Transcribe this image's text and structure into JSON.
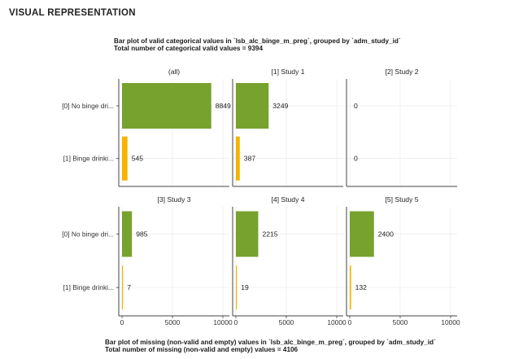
{
  "section": {
    "title": "VISUAL REPRESENTATION"
  },
  "header": {
    "line1": "Bar plot of valid categorical values in `lsb_alc_binge_m_preg`, grouped by `adm_study_id`",
    "line2": "Total number of categorical valid values = 9394"
  },
  "footer": {
    "line1": "Bar plot of missing (non-valid and empty) values in `lsb_alc_binge_m_preg`, grouped by `adm_study_id`",
    "line2": "Total number of missing (non-valid and empty) values = 4106"
  },
  "chart_data": {
    "type": "bar",
    "orientation": "horizontal",
    "categories": [
      "[0] No binge dri...",
      "[1] Binge drinki..."
    ],
    "colors": [
      "#77a22e",
      "#f5b400"
    ],
    "xlim": [
      0,
      10000
    ],
    "x_ticks": [
      0,
      5000,
      10000
    ],
    "grid": true,
    "facets": [
      {
        "title": "(all)",
        "values": [
          8849,
          545
        ]
      },
      {
        "title": "[1] Study 1",
        "values": [
          3249,
          387
        ]
      },
      {
        "title": "[2] Study 2",
        "values": [
          0,
          0
        ]
      },
      {
        "title": "[3] Study 3",
        "values": [
          985,
          7
        ]
      },
      {
        "title": "[4] Study 4",
        "values": [
          2215,
          19
        ]
      },
      {
        "title": "[5] Study 5",
        "values": [
          2400,
          132
        ]
      }
    ]
  }
}
